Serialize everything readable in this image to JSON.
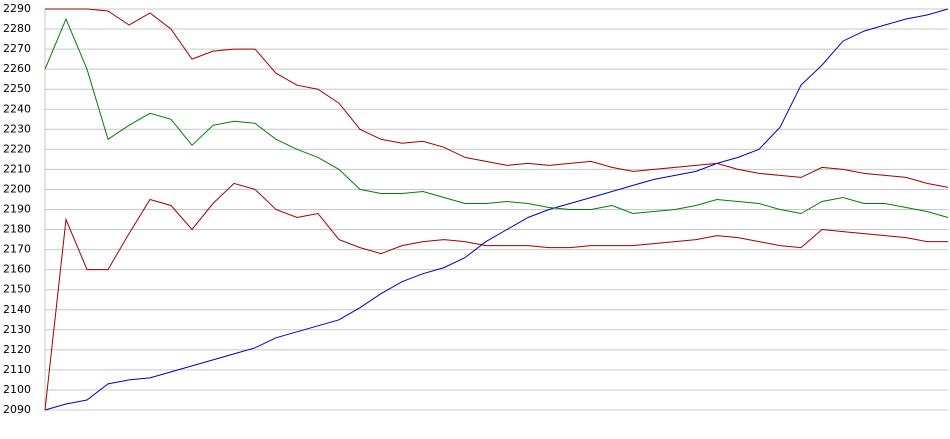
{
  "chart_data": {
    "type": "line",
    "ylim": [
      2090,
      2290
    ],
    "yticks": [
      2090,
      2100,
      2110,
      2120,
      2130,
      2140,
      2150,
      2160,
      2170,
      2180,
      2190,
      2200,
      2210,
      2220,
      2230,
      2240,
      2250,
      2260,
      2270,
      2280,
      2290
    ],
    "grid": true,
    "series": [
      {
        "color": "#0000c0",
        "values": [
          2090,
          2093,
          2095,
          2103,
          2105,
          2106,
          2109,
          2112,
          2115,
          2118,
          2121,
          2126,
          2129,
          2132,
          2135,
          2141,
          2148,
          2154,
          2158,
          2161,
          2166,
          2174,
          2180,
          2186,
          2190,
          2193,
          2196,
          2199,
          2202,
          2205,
          2207,
          2209,
          2213,
          2216,
          2220,
          2231,
          2252,
          2262,
          2274,
          2279,
          2282,
          2285,
          2287,
          2290
        ]
      },
      {
        "color": "#a00000",
        "values": [
          2290,
          2290,
          2290,
          2289,
          2282,
          2288,
          2280,
          2265,
          2269,
          2270,
          2270,
          2258,
          2252,
          2250,
          2243,
          2230,
          2225,
          2223,
          2224,
          2221,
          2216,
          2214,
          2212,
          2213,
          2212,
          2213,
          2214,
          2211,
          2209,
          2210,
          2211,
          2212,
          2213,
          2210,
          2208,
          2207,
          2206,
          2211,
          2210,
          2208,
          2207,
          2206,
          2203,
          2201
        ]
      },
      {
        "color": "#008000",
        "values": [
          2260,
          2285,
          2260,
          2225,
          2232,
          2238,
          2235,
          2222,
          2232,
          2234,
          2233,
          2225,
          2220,
          2216,
          2210,
          2200,
          2198,
          2198,
          2199,
          2196,
          2193,
          2193,
          2194,
          2193,
          2191,
          2190,
          2190,
          2192,
          2188,
          2189,
          2190,
          2192,
          2195,
          2194,
          2193,
          2190,
          2188,
          2194,
          2196,
          2193,
          2193,
          2191,
          2189,
          2186
        ]
      },
      {
        "color": "#a00000",
        "values": [
          2090,
          2185,
          2160,
          2160,
          2178,
          2195,
          2192,
          2180,
          2193,
          2203,
          2200,
          2190,
          2186,
          2188,
          2175,
          2171,
          2168,
          2172,
          2174,
          2175,
          2174,
          2172,
          2172,
          2172,
          2171,
          2171,
          2172,
          2172,
          2172,
          2173,
          2174,
          2175,
          2177,
          2176,
          2174,
          2172,
          2171,
          2180,
          2179,
          2178,
          2177,
          2176,
          2174,
          2174
        ]
      }
    ]
  }
}
